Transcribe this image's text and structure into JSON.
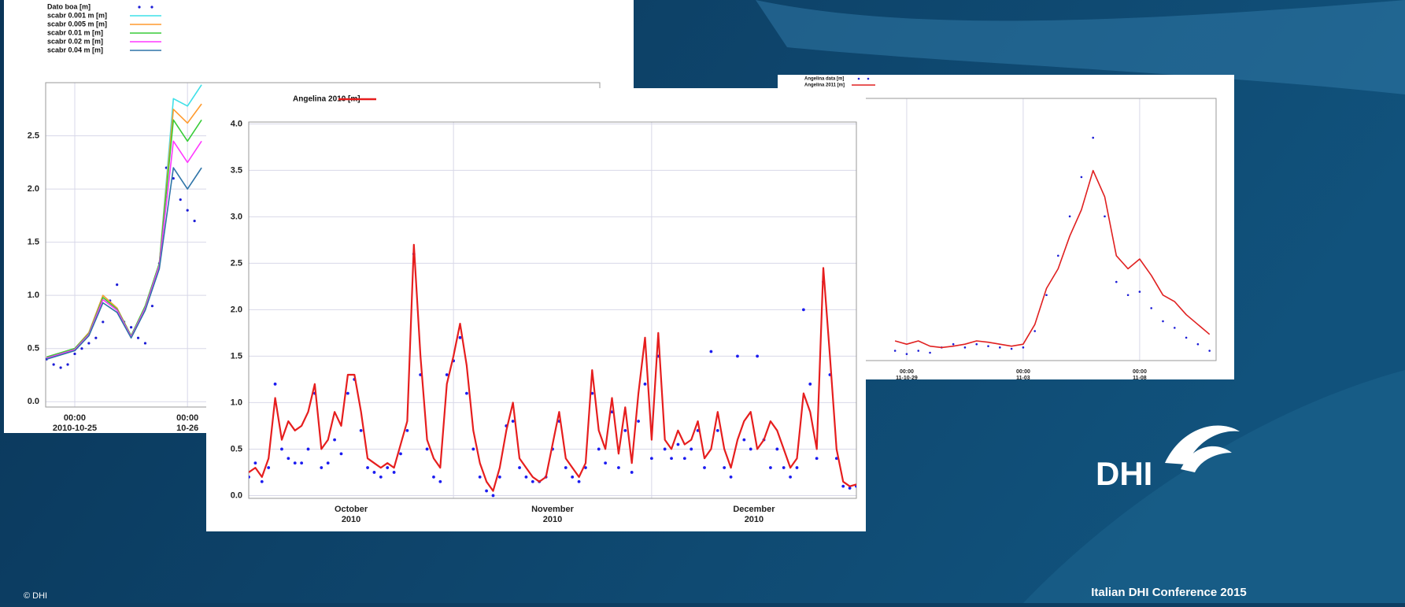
{
  "chart_data": [
    {
      "type": "line",
      "grid": true,
      "xlim": [
        "2010-10-24 17:48",
        "2010-10-29 15:48"
      ],
      "xticks": [
        {
          "value": "2010-10-25 00:00",
          "label": [
            "00:00",
            "2010-10-25"
          ]
        },
        {
          "value": "2010-10-26 00:00",
          "label": [
            "00:00",
            "10-26"
          ]
        }
      ],
      "ylim": [
        -0.05,
        3.0
      ],
      "yticks": [
        {
          "value": 0,
          "label": "0.0"
        },
        0.5,
        {
          "value": 1,
          "label": "1.0"
        },
        1.5,
        {
          "value": 2,
          "label": "2.0"
        },
        2.5
      ],
      "x": [
        "2010-10-24 18:00",
        "2010-10-24 21:00",
        "2010-10-25 00:00",
        "2010-10-25 03:00",
        "2010-10-25 06:00",
        "2010-10-25 09:00",
        "2010-10-25 12:00",
        "2010-10-25 15:00",
        "2010-10-25 18:00",
        "2010-10-25 21:00",
        "2010-10-26 00:00",
        "2010-10-26 03:00"
      ],
      "series": [
        {
          "name": "Dato boa [m]",
          "color": "#1c1cd6",
          "mode": "markers",
          "x": [
            "2010-10-24 18:00",
            "2010-10-24 19:30",
            "2010-10-24 21:00",
            "2010-10-24 22:30",
            "2010-10-25 00:00",
            "2010-10-25 01:30",
            "2010-10-25 03:00",
            "2010-10-25 04:30",
            "2010-10-25 06:00",
            "2010-10-25 07:30",
            "2010-10-25 09:00",
            "2010-10-25 10:30",
            "2010-10-25 12:00",
            "2010-10-25 13:30",
            "2010-10-25 15:00",
            "2010-10-25 16:30",
            "2010-10-25 18:00",
            "2010-10-25 19:30",
            "2010-10-25 21:00",
            "2010-10-25 22:30",
            "2010-10-26 00:00",
            "2010-10-26 01:30"
          ],
          "values": [
            0.4,
            0.35,
            0.32,
            0.35,
            0.45,
            0.5,
            0.55,
            0.6,
            0.75,
            0.95,
            1.1,
            0.75,
            0.7,
            0.6,
            0.55,
            0.9,
            1.3,
            2.2,
            2.1,
            1.9,
            1.8,
            1.7
          ]
        },
        {
          "name": "scabr 0.001 m [m]",
          "color": "#3ee0e8",
          "mode": "lines",
          "values": [
            0.42,
            0.46,
            0.5,
            0.65,
            1.0,
            0.88,
            0.62,
            0.9,
            1.3,
            2.85,
            2.78,
            2.98
          ]
        },
        {
          "name": "scabr 0.005 m [m]",
          "color": "#ff9a2e",
          "mode": "lines",
          "values": [
            0.42,
            0.46,
            0.5,
            0.65,
            1.0,
            0.88,
            0.62,
            0.9,
            1.3,
            2.75,
            2.62,
            2.8
          ]
        },
        {
          "name": "scabr 0.01 m [m]",
          "color": "#38cc38",
          "mode": "lines",
          "values": [
            0.42,
            0.46,
            0.5,
            0.64,
            0.98,
            0.87,
            0.62,
            0.9,
            1.3,
            2.65,
            2.45,
            2.65
          ]
        },
        {
          "name": "scabr 0.02 m [m]",
          "color": "#ff38ff",
          "mode": "lines",
          "values": [
            0.41,
            0.45,
            0.49,
            0.63,
            0.96,
            0.86,
            0.61,
            0.88,
            1.28,
            2.45,
            2.25,
            2.45
          ]
        },
        {
          "name": "scabr 0.04 m [m]",
          "color": "#2f74a8",
          "mode": "lines",
          "values": [
            0.4,
            0.44,
            0.48,
            0.62,
            0.93,
            0.84,
            0.6,
            0.86,
            1.25,
            2.2,
            2.0,
            2.2
          ]
        }
      ]
    },
    {
      "type": "line",
      "grid": true,
      "xlim": [
        "2011-10-24 13:00",
        "2011-11-11 06:45"
      ],
      "xticks": [
        {
          "value": "2011-10-29 00:00",
          "label": [
            "00:00",
            "11-10-29"
          ]
        },
        {
          "value": "2011-11-03 00:00",
          "label": [
            "00:00",
            "11-03"
          ]
        },
        {
          "value": "2011-11-08 00:00",
          "label": [
            "00:00",
            "11-08"
          ]
        }
      ],
      "ylim": [
        0,
        4
      ],
      "x": [
        "2011-10-28 12:00",
        "2011-10-29 00:00",
        "2011-10-29 12:00",
        "2011-10-30 00:00",
        "2011-10-30 12:00",
        "2011-10-31 00:00",
        "2011-10-31 12:00",
        "2011-11-01 00:00",
        "2011-11-01 12:00",
        "2011-11-02 00:00",
        "2011-11-02 12:00",
        "2011-11-03 00:00",
        "2011-11-03 12:00",
        "2011-11-04 00:00",
        "2011-11-04 12:00",
        "2011-11-05 00:00",
        "2011-11-05 12:00",
        "2011-11-06 00:00",
        "2011-11-06 12:00",
        "2011-11-07 00:00",
        "2011-11-07 12:00",
        "2011-11-08 00:00",
        "2011-11-08 12:00",
        "2011-11-09 00:00",
        "2011-11-09 12:00",
        "2011-11-10 00:00",
        "2011-11-10 12:00",
        "2011-11-11 00:00"
      ],
      "series": [
        {
          "name": "Angelina data [m]",
          "color": "#1c1cd6",
          "mode": "markers",
          "values": [
            0.15,
            0.1,
            0.15,
            0.12,
            0.2,
            0.25,
            0.2,
            0.25,
            0.22,
            0.2,
            0.18,
            0.2,
            0.45,
            1.0,
            1.6,
            2.2,
            2.8,
            3.4,
            2.2,
            1.2,
            1.0,
            1.05,
            0.8,
            0.6,
            0.5,
            0.35,
            0.25,
            0.15
          ]
        },
        {
          "name": "Angelina 2011 [m]",
          "color": "#e02020",
          "mode": "lines",
          "values": [
            0.3,
            0.25,
            0.3,
            0.22,
            0.2,
            0.22,
            0.25,
            0.3,
            0.28,
            0.25,
            0.22,
            0.25,
            0.55,
            1.1,
            1.4,
            1.9,
            2.3,
            2.9,
            2.5,
            1.6,
            1.4,
            1.55,
            1.3,
            1.0,
            0.9,
            0.7,
            0.55,
            0.4
          ]
        }
      ]
    },
    {
      "type": "line",
      "grid": true,
      "xtick_labels": "centered",
      "xlim": [
        "2010-10",
        "2011-01"
      ],
      "xticks": [
        {
          "value": "2010-10",
          "label": [
            "October",
            "2010"
          ]
        },
        {
          "value": "2010-11",
          "label": [
            "November",
            "2010"
          ]
        },
        {
          "value": "2010-12",
          "label": [
            "December",
            "2010"
          ]
        }
      ],
      "ylim": [
        -0.03,
        4.02
      ],
      "yticks": [
        {
          "value": 0,
          "label": "0.0"
        },
        0.5,
        {
          "value": 1,
          "label": "1.0"
        },
        1.5,
        {
          "value": 2,
          "label": "2.0"
        },
        2.5,
        {
          "value": 3,
          "label": "3.0"
        },
        3.5,
        {
          "value": 4,
          "label": "4.0"
        }
      ],
      "series": [
        {
          "color": "#1c1cf0",
          "mode": "markers",
          "values": [
            0.2,
            0.35,
            0.15,
            0.3,
            1.2,
            0.5,
            0.4,
            0.35,
            0.35,
            0.5,
            1.1,
            0.3,
            0.35,
            0.6,
            0.45,
            1.1,
            1.25,
            0.7,
            0.3,
            0.25,
            0.2,
            0.3,
            0.25,
            0.45,
            0.7,
            2.6,
            1.3,
            0.5,
            0.2,
            0.15,
            1.3,
            1.45,
            1.7,
            1.1,
            0.5,
            0.2,
            0.05,
            0.0,
            0.2,
            0.75,
            0.8,
            0.3,
            0.2,
            0.15,
            0.15,
            0.2,
            0.5,
            0.8,
            0.3,
            0.2,
            0.15,
            0.3,
            1.1,
            0.5,
            0.35,
            0.9,
            0.3,
            0.7,
            0.25,
            0.8,
            1.2,
            0.4,
            1.5,
            0.5,
            0.4,
            0.55,
            0.4,
            0.5,
            0.7,
            0.3,
            1.55,
            0.7,
            0.3,
            0.2,
            1.5,
            0.6,
            0.5,
            1.5,
            0.6,
            0.3,
            0.5,
            0.3,
            0.2,
            0.3,
            2.0,
            1.2,
            0.4,
            2.3,
            1.3,
            0.4,
            0.1,
            0.08,
            0.1
          ]
        },
        {
          "name": "Angelina 2010 [m]",
          "color": "#e61e1e",
          "mode": "lines",
          "values": [
            0.25,
            0.3,
            0.2,
            0.4,
            1.05,
            0.6,
            0.8,
            0.7,
            0.75,
            0.9,
            1.2,
            0.5,
            0.6,
            0.9,
            0.75,
            1.3,
            1.3,
            0.9,
            0.4,
            0.35,
            0.3,
            0.35,
            0.3,
            0.55,
            0.8,
            2.7,
            1.5,
            0.6,
            0.4,
            0.3,
            1.2,
            1.5,
            1.85,
            1.4,
            0.7,
            0.35,
            0.15,
            0.05,
            0.3,
            0.7,
            1.0,
            0.4,
            0.3,
            0.2,
            0.15,
            0.2,
            0.55,
            0.9,
            0.4,
            0.3,
            0.2,
            0.35,
            1.35,
            0.7,
            0.5,
            1.05,
            0.45,
            0.95,
            0.35,
            1.1,
            1.7,
            0.6,
            1.75,
            0.6,
            0.5,
            0.7,
            0.55,
            0.6,
            0.8,
            0.4,
            0.5,
            0.9,
            0.5,
            0.3,
            0.6,
            0.8,
            0.9,
            0.5,
            0.6,
            0.8,
            0.7,
            0.5,
            0.3,
            0.4,
            1.1,
            0.9,
            0.5,
            2.45,
            1.5,
            0.5,
            0.15,
            0.1,
            0.12
          ]
        }
      ]
    }
  ],
  "footer": {
    "copyright": "© DHI",
    "conference": "Italian DHI Conference 2015",
    "logo": "DHI"
  }
}
